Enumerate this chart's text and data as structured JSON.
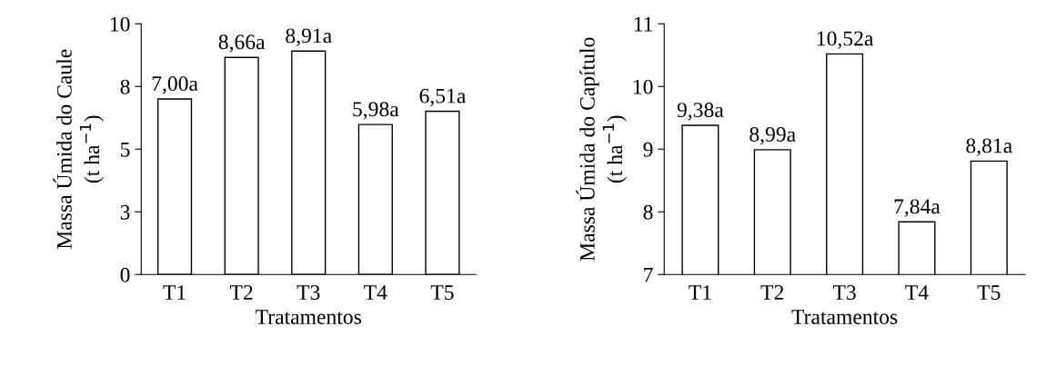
{
  "chart_data": [
    {
      "type": "bar",
      "categories": [
        "T1",
        "T2",
        "T3",
        "T4",
        "T5"
      ],
      "values": [
        7.0,
        8.66,
        8.91,
        5.98,
        6.51
      ],
      "color": "#ffffff",
      "value_labels": [
        "7,00a",
        "8,66a",
        "8,91a",
        "5,98a",
        "6,51a"
      ],
      "xlabel": "Tratamentos",
      "ylabel": "Massa Úmida do Caule\n(t ha$^{−1}$)",
      "ylim": [
        0,
        10
      ],
      "yticks": [
        0,
        {
          "value": 2.5,
          "label": "3"
        },
        5,
        {
          "value": 7.5,
          "label": "8"
        },
        10
      ],
      "grid": false,
      "legend": false
    },
    {
      "type": "bar",
      "categories": [
        "T1",
        "T2",
        "T3",
        "T4",
        "T5"
      ],
      "values": [
        9.38,
        8.99,
        10.52,
        7.84,
        8.81
      ],
      "color": "#ffffff",
      "value_labels": [
        "9,38a",
        "8,99a",
        "10,52a",
        "7,84a",
        "8,81a"
      ],
      "xlabel": "Tratamentos",
      "ylabel": "Massa Úmida do Capítulo\n(t ha$^{−1}$)",
      "ylim": [
        7,
        11
      ],
      "yticks": [
        7,
        8,
        9,
        10,
        11
      ],
      "grid": false,
      "legend": false
    }
  ]
}
